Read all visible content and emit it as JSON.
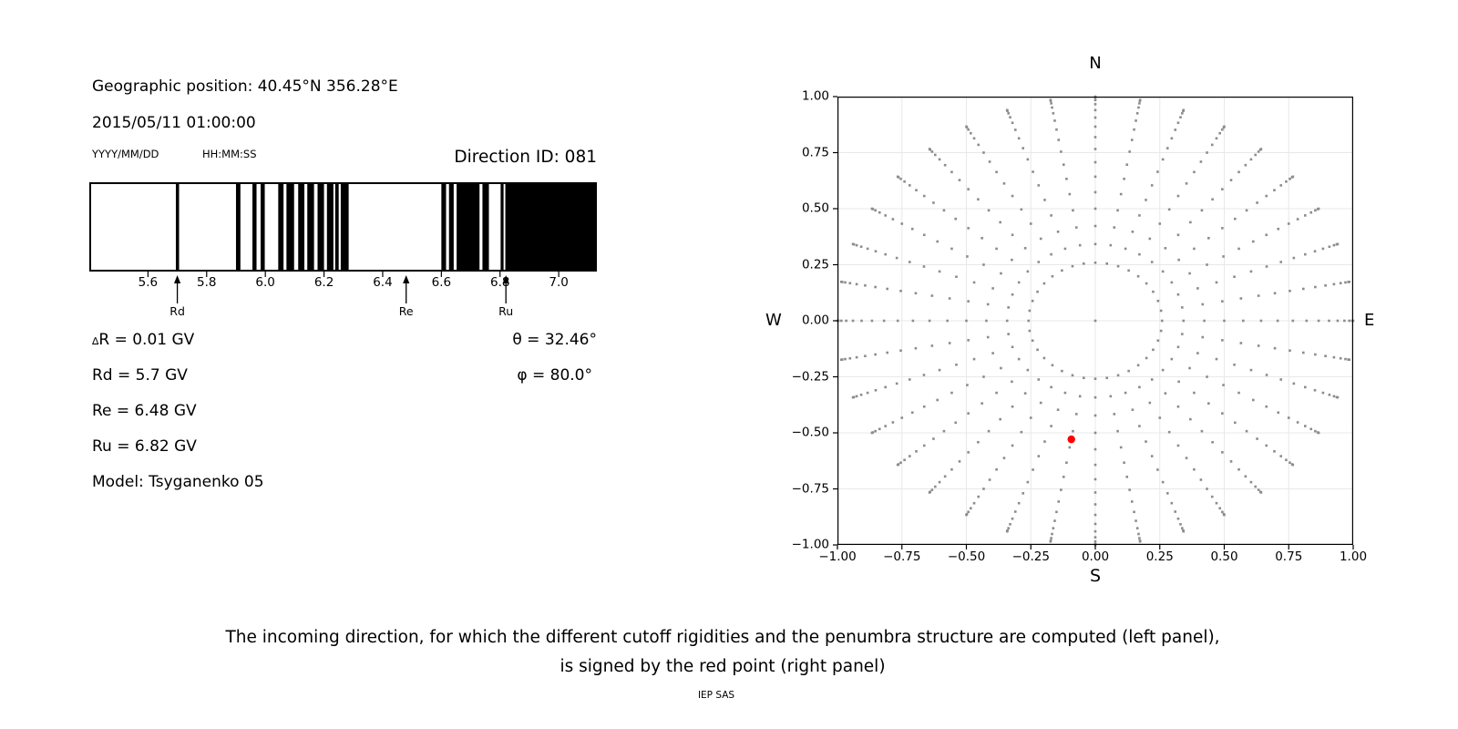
{
  "header": {
    "geo_position": "Geographic position: 40.45°N 356.28°E",
    "datetime": "2015/05/11 01:00:00",
    "date_format_label": "YYYY/MM/DD",
    "time_format_label": "HH:MM:SS",
    "direction_id": "Direction ID: 081"
  },
  "values": {
    "delta_prefix": "∆",
    "delta_rest": "R = 0.01 GV",
    "rd": "Rd = 5.7 GV",
    "re": "Re = 6.48 GV",
    "ru": "Ru = 6.82 GV",
    "model": "Model: Tsyganenko 05",
    "theta": "θ = 32.46°",
    "phi": "φ = 80.0°"
  },
  "caption": {
    "line1": "The incoming direction, for which the different cutoff rigidities and the penumbra structure are computed (left panel),",
    "line2": "is signed by the red point (right panel)",
    "credit": "IEP SAS"
  },
  "chart_data": [
    {
      "name": "penumbra-structure",
      "type": "barcode",
      "unit": "GV",
      "xlim": [
        5.4,
        7.13
      ],
      "xticks": [
        5.6,
        5.8,
        6.0,
        6.2,
        6.4,
        6.6,
        6.8,
        7.0
      ],
      "bar_color": "#000000",
      "bands_gv": [
        [
          5.695,
          5.706
        ],
        [
          5.9,
          5.915
        ],
        [
          5.956,
          5.97
        ],
        [
          5.984,
          5.998
        ],
        [
          6.044,
          6.062
        ],
        [
          6.072,
          6.098
        ],
        [
          6.112,
          6.133
        ],
        [
          6.143,
          6.166
        ],
        [
          6.178,
          6.2
        ],
        [
          6.21,
          6.232
        ],
        [
          6.238,
          6.25
        ],
        [
          6.257,
          6.284
        ],
        [
          6.6,
          6.616
        ],
        [
          6.626,
          6.642
        ],
        [
          6.652,
          6.73
        ],
        [
          6.74,
          6.762
        ],
        [
          6.802,
          6.812
        ],
        [
          6.818,
          7.13
        ]
      ],
      "markers": [
        {
          "label": "Rd",
          "value_gv": 5.7
        },
        {
          "label": "Re",
          "value_gv": 6.48
        },
        {
          "label": "Ru",
          "value_gv": 6.82
        }
      ]
    },
    {
      "name": "incoming-direction-grid",
      "type": "scatter",
      "label_top": "N",
      "label_bottom": "S",
      "label_left": "W",
      "label_right": "E",
      "xlim": [
        -1,
        1
      ],
      "ylim": [
        -1,
        1
      ],
      "xticks": [
        -1.0,
        -0.75,
        -0.5,
        -0.25,
        0.0,
        0.25,
        0.5,
        0.75,
        1.0
      ],
      "yticks": [
        1.0,
        0.75,
        0.5,
        0.25,
        0.0,
        -0.25,
        -0.5,
        -0.75,
        -1.0
      ],
      "grid": true,
      "grid_color": "#e8e8e8",
      "dot_color": "#8c8c8c",
      "grid_points": {
        "azimuth_deg": {
          "start": 0,
          "step": 10,
          "count": 36
        },
        "zenith_deg": {
          "start": 15,
          "step": 5,
          "end": 90
        },
        "projection": "r = sin(zenith); x = r*cos(azimuth); y = r*sin(azimuth)",
        "includes_center_point": true
      },
      "red_point": {
        "x": -0.093,
        "y": -0.529,
        "color": "#ff0000"
      }
    }
  ]
}
